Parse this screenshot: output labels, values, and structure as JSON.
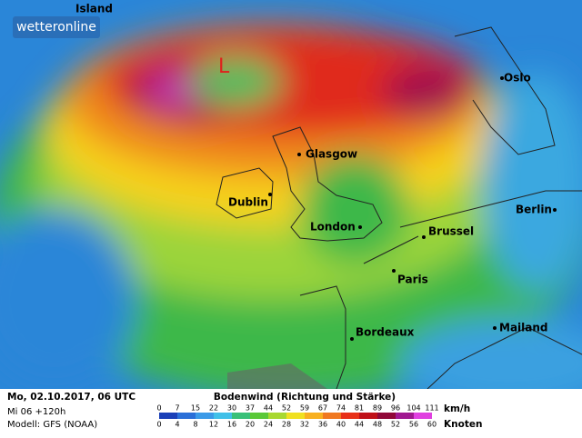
{
  "logo": "wetteronline",
  "map": {
    "low_marker": "L",
    "cities": [
      "Island",
      "Oslo",
      "Glasgow",
      "Dublin",
      "London",
      "Brussel",
      "Berlin",
      "Paris",
      "Mailand",
      "Bordeaux"
    ]
  },
  "footer": {
    "date": "Mo, 02.10.2017, 06 UTC",
    "run": "Mi 06 +120h",
    "model": "Modell: GFS (NOAA)",
    "legend_title": "Bodenwind (Richtung und Stärke)",
    "kmh_unit": "km/h",
    "kmh_labels": [
      0,
      7,
      15,
      22,
      30,
      37,
      44,
      52,
      59,
      67,
      74,
      81,
      89,
      96,
      104,
      111
    ],
    "knots_unit": "Knoten",
    "knots_labels": [
      0,
      4,
      8,
      12,
      16,
      20,
      24,
      28,
      32,
      36,
      40,
      44,
      48,
      52,
      56,
      60
    ]
  }
}
